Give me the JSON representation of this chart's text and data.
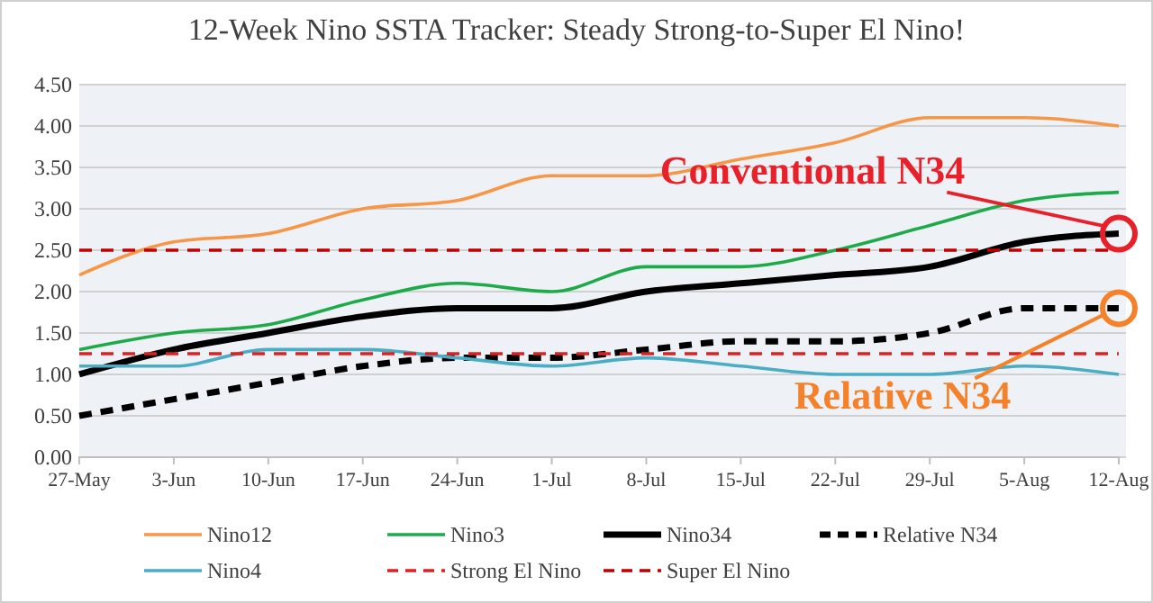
{
  "chart_data": {
    "type": "line",
    "title": "12-Week Nino SSTA Tracker: Steady Strong-to-Super El Nino!",
    "categories": [
      "27-May",
      "3-Jun",
      "10-Jun",
      "17-Jun",
      "24-Jun",
      "1-Jul",
      "8-Jul",
      "15-Jul",
      "22-Jul",
      "29-Jul",
      "5-Aug",
      "12-Aug"
    ],
    "series": [
      {
        "name": "Nino12",
        "color": "#f79646",
        "values": [
          2.2,
          2.6,
          2.7,
          3.0,
          3.1,
          3.4,
          3.4,
          3.6,
          3.8,
          4.1,
          4.1,
          4.0
        ]
      },
      {
        "name": "Nino3",
        "color": "#1faa4a",
        "values": [
          1.3,
          1.5,
          1.6,
          1.9,
          2.1,
          2.0,
          2.3,
          2.3,
          2.5,
          2.8,
          3.1,
          3.2
        ]
      },
      {
        "name": "Nino34",
        "color": "#000000",
        "values": [
          1.0,
          1.3,
          1.5,
          1.7,
          1.8,
          1.8,
          2.0,
          2.1,
          2.2,
          2.3,
          2.6,
          2.7
        ]
      },
      {
        "name": "Relative N34",
        "color": "#000000",
        "line_style": "dashed",
        "values": [
          0.5,
          0.7,
          0.9,
          1.1,
          1.2,
          1.2,
          1.3,
          1.4,
          1.4,
          1.5,
          1.8,
          1.8
        ]
      },
      {
        "name": "Nino4",
        "color": "#4bacc6",
        "values": [
          1.1,
          1.1,
          1.3,
          1.3,
          1.2,
          1.1,
          1.2,
          1.1,
          1.0,
          1.0,
          1.1,
          1.0
        ]
      },
      {
        "name": "Strong El Nino",
        "color": "#e02020",
        "line_style": "dashed",
        "values": [
          1.25,
          1.25,
          1.25,
          1.25,
          1.25,
          1.25,
          1.25,
          1.25,
          1.25,
          1.25,
          1.25,
          1.25
        ]
      },
      {
        "name": "Super El Nino",
        "color": "#c00000",
        "line_style": "dashed",
        "values": [
          2.5,
          2.5,
          2.5,
          2.5,
          2.5,
          2.5,
          2.5,
          2.5,
          2.5,
          2.5,
          2.5,
          2.5
        ]
      }
    ],
    "ylim": [
      0,
      4.5
    ],
    "yticks": [
      {
        "value": 0,
        "label": "0.00"
      },
      {
        "value": 0.5,
        "label": "0.50"
      },
      {
        "value": 1,
        "label": "1.00"
      },
      {
        "value": 1.5,
        "label": "1.50"
      },
      {
        "value": 2,
        "label": "2.00"
      },
      {
        "value": 2.5,
        "label": "2.50"
      },
      {
        "value": 3,
        "label": "3.00"
      },
      {
        "value": 3.5,
        "label": "3.50"
      },
      {
        "value": 4,
        "label": "4.00"
      },
      {
        "value": 4.5,
        "label": "4.50"
      }
    ],
    "grid": "y",
    "legend": "bottom",
    "marker": "none",
    "annotations": [
      {
        "text": "Conventional N34",
        "x": "12-Aug",
        "y": 2.7
      },
      {
        "text": "Relative N34",
        "x": "12-Aug",
        "y": 1.8
      }
    ]
  }
}
